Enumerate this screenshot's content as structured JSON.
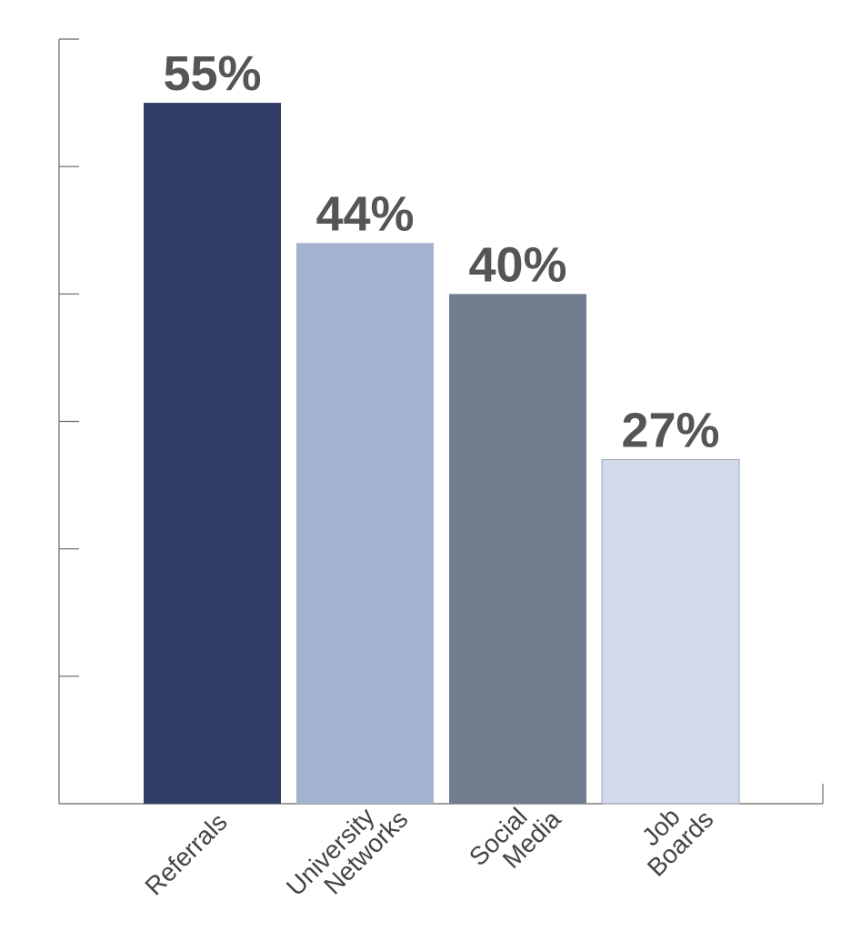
{
  "chart_data": {
    "type": "bar",
    "categories": [
      "Referrals",
      "University Networks",
      "Social Media",
      "Job Boards"
    ],
    "values": [
      55,
      44,
      40,
      27
    ],
    "value_labels": [
      "55%",
      "44%",
      "40%",
      "27%"
    ],
    "colors": [
      "#323d66",
      "#a4b2cf",
      "#737d90",
      "#d3dbea"
    ],
    "ylim": [
      0,
      60
    ],
    "yticks": [
      10,
      20,
      30,
      40,
      50,
      60
    ]
  }
}
